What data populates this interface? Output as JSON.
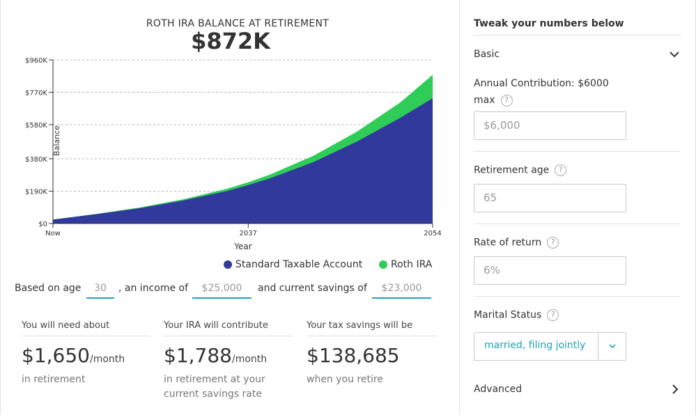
{
  "chart": {
    "title": "ROTH IRA BALANCE AT RETIREMENT",
    "value": "$872K"
  },
  "chart_data": {
    "type": "area",
    "title": "ROTH IRA BALANCE AT RETIREMENT",
    "xlabel": "Year",
    "ylabel": "Balance",
    "x_ticks": [
      "Now",
      "2037",
      "2054"
    ],
    "y_ticks": [
      "$960K",
      "$770K",
      "$580K",
      "$380K",
      "$190K",
      "$0"
    ],
    "ylim": [
      0,
      960000
    ],
    "grid": true,
    "legend_position": "bottom-right",
    "x": [
      2019,
      2023,
      2027,
      2031,
      2035,
      2037,
      2039,
      2043,
      2047,
      2051,
      2054
    ],
    "series": [
      {
        "name": "Standard Taxable Account",
        "color": "#313a9c",
        "values": [
          23000,
          55000,
          90000,
          135000,
          190000,
          225000,
          265000,
          360000,
          480000,
          620000,
          735000
        ]
      },
      {
        "name": "Roth IRA",
        "color": "#2fcc58",
        "values": [
          23000,
          56000,
          94000,
          142000,
          203000,
          242000,
          287000,
          397000,
          538000,
          710000,
          872000
        ]
      }
    ]
  },
  "legend": {
    "taxable": "Standard Taxable Account",
    "roth": "Roth IRA",
    "taxable_color": "#313a9c",
    "roth_color": "#2fcc58"
  },
  "based": {
    "age_prefix": "Based on age",
    "age": "30",
    "income_prefix": ", an income of",
    "income": "$25,000",
    "savings_prefix": "and current savings of",
    "savings": "$23,000"
  },
  "stats": [
    {
      "label": "You will need about",
      "value": "$1,650",
      "unit": "/month",
      "sub": "in retirement"
    },
    {
      "label": "Your IRA will contribute",
      "value": "$1,788",
      "unit": "/month",
      "sub": "in retirement at your current savings rate"
    },
    {
      "label": "Your tax savings will be",
      "value": "$138,685",
      "unit": "",
      "sub": "when you retire"
    }
  ],
  "panel": {
    "title": "Tweak your numbers below",
    "basic": "Basic",
    "contribution_label": "Annual Contribution: $6000 max",
    "contribution_value": "$6,000",
    "retirement_label": "Retirement age",
    "retirement_value": "65",
    "rate_label": "Rate of return",
    "rate_value": "6%",
    "marital_label": "Marital Status",
    "marital_value": "married, filing jointly",
    "advanced": "Advanced",
    "help_glyph": "?"
  },
  "accent": "#1ba6b8"
}
